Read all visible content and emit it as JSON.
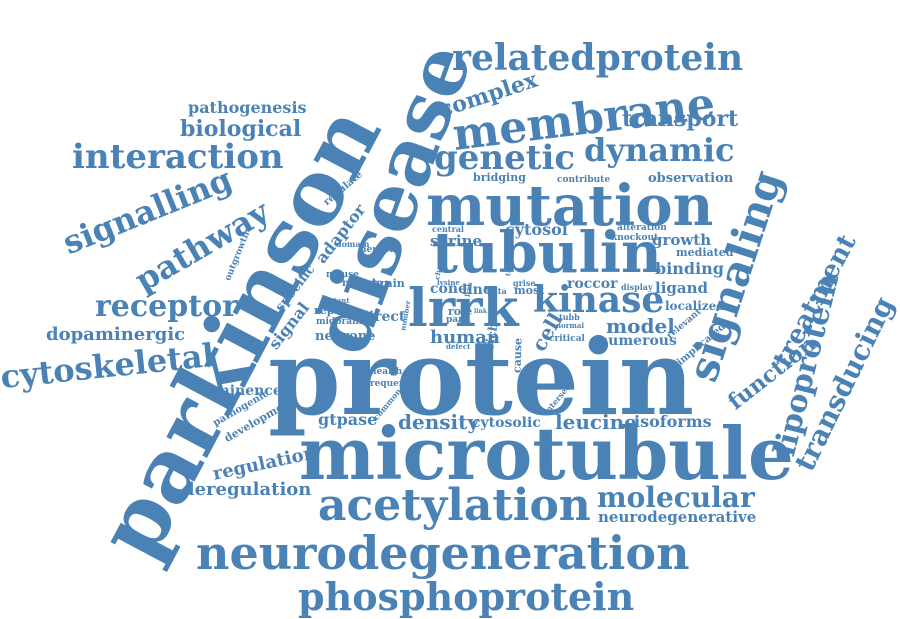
{
  "word_color": "#4a82b6",
  "background_color": "#ffffff",
  "words": [
    {
      "id": "protein",
      "text": "protein"
    },
    {
      "id": "microtubule",
      "text": "microtubule"
    },
    {
      "id": "parkinson",
      "text": "parkinson"
    },
    {
      "id": "disease",
      "text": "disease"
    },
    {
      "id": "mutation",
      "text": "mutation"
    },
    {
      "id": "tubulin",
      "text": "tubulin"
    },
    {
      "id": "lrrk",
      "text": "lrrk"
    },
    {
      "id": "neurodegeneration",
      "text": "neurodegeneration"
    },
    {
      "id": "acetylation",
      "text": "acetylation"
    },
    {
      "id": "membrane",
      "text": "membrane"
    },
    {
      "id": "signaling",
      "text": "signaling"
    },
    {
      "id": "phosphoprotein",
      "text": "phosphoprotein"
    },
    {
      "id": "relatedprotein",
      "text": "relatedprotein"
    },
    {
      "id": "kinase",
      "text": "kinase"
    },
    {
      "id": "genetic",
      "text": "genetic"
    },
    {
      "id": "dynamic",
      "text": "dynamic"
    },
    {
      "id": "interaction",
      "text": "interaction"
    },
    {
      "id": "signalling",
      "text": "signalling"
    },
    {
      "id": "pathway",
      "text": "pathway"
    },
    {
      "id": "receptor",
      "text": "receptor"
    },
    {
      "id": "cytoskeletal",
      "text": "cytoskeletal"
    },
    {
      "id": "molecular",
      "text": "molecular"
    },
    {
      "id": "lipoprotein",
      "text": "lipoprotein"
    },
    {
      "id": "transducing",
      "text": "transducing"
    },
    {
      "id": "treatment",
      "text": "treatment"
    },
    {
      "id": "function",
      "text": "function"
    },
    {
      "id": "complex",
      "text": "complex"
    },
    {
      "id": "transport",
      "text": "transport"
    },
    {
      "id": "biological",
      "text": "biological"
    },
    {
      "id": "pathogenesis",
      "text": "pathogenesis"
    },
    {
      "id": "dopaminergic",
      "text": "dopaminergic"
    },
    {
      "id": "density",
      "text": "density"
    },
    {
      "id": "leucine",
      "text": "leucine"
    },
    {
      "id": "isoforms",
      "text": "isoforms"
    },
    {
      "id": "neurodegenerative",
      "text": "neurodegenerative"
    },
    {
      "id": "deregulation",
      "text": "deregulation"
    },
    {
      "id": "regulation",
      "text": "regulation"
    },
    {
      "id": "gtpase",
      "text": "gtpase"
    },
    {
      "id": "cytosolic",
      "text": "cytosolic"
    },
    {
      "id": "model",
      "text": "model"
    },
    {
      "id": "human",
      "text": "human"
    },
    {
      "id": "numerous",
      "text": "numerous"
    },
    {
      "id": "neurone",
      "text": "neurone"
    },
    {
      "id": "cytosol",
      "text": "cytosol"
    },
    {
      "id": "serine",
      "text": "serine"
    },
    {
      "id": "growth",
      "text": "growth"
    },
    {
      "id": "binding",
      "text": "binding"
    },
    {
      "id": "ligand",
      "text": "ligand"
    },
    {
      "id": "roccor",
      "text": "roccor"
    },
    {
      "id": "localized",
      "text": "localized"
    },
    {
      "id": "observation",
      "text": "observation"
    },
    {
      "id": "mediated",
      "text": "mediated"
    },
    {
      "id": "signal",
      "text": "signal"
    },
    {
      "id": "specific",
      "text": "specific"
    },
    {
      "id": "adaptor",
      "text": "adaptor"
    },
    {
      "id": "eminence",
      "text": "éminence"
    },
    {
      "id": "pathogenic",
      "text": "pathogenic"
    },
    {
      "id": "development",
      "text": "development"
    },
    {
      "id": "outgrowth",
      "text": "outgrowth"
    },
    {
      "id": "regulate",
      "text": "regulate"
    },
    {
      "id": "domain",
      "text": "domain"
    },
    {
      "id": "bridging",
      "text": "bridging"
    },
    {
      "id": "contribute",
      "text": "contribute"
    },
    {
      "id": "most",
      "text": "most"
    },
    {
      "id": "alteration",
      "text": "alteration"
    },
    {
      "id": "knockout",
      "text": "knockout"
    },
    {
      "id": "central",
      "text": "central"
    },
    {
      "id": "cone",
      "text": "cone"
    },
    {
      "id": "line",
      "text": "line"
    },
    {
      "id": "data",
      "text": "data"
    },
    {
      "id": "cell",
      "text": "cell"
    },
    {
      "id": "direct",
      "text": "direct"
    },
    {
      "id": "repeat",
      "text": "repeat"
    },
    {
      "id": "midbrain",
      "text": "midbrain"
    },
    {
      "id": "brain",
      "text": "brain"
    },
    {
      "id": "mature",
      "text": "mature"
    },
    {
      "id": "mouse",
      "text": "mouse"
    },
    {
      "id": "mutant",
      "text": "mutant"
    },
    {
      "id": "neuron",
      "text": "neuron"
    },
    {
      "id": "cause",
      "text": "cause"
    },
    {
      "id": "critical",
      "text": "critical"
    },
    {
      "id": "normal",
      "text": "normal"
    },
    {
      "id": "tubb",
      "text": "tubb"
    },
    {
      "id": "rich",
      "text": "rich"
    },
    {
      "id": "role",
      "text": "role"
    },
    {
      "id": "park",
      "text": "park"
    },
    {
      "id": "health",
      "text": "health"
    },
    {
      "id": "frequent",
      "text": "frequent"
    },
    {
      "id": "common",
      "text": "common"
    },
    {
      "id": "intersect",
      "text": "intersect"
    },
    {
      "id": "relevant",
      "text": "relevant"
    },
    {
      "id": "implicated",
      "text": "implicated"
    },
    {
      "id": "display",
      "text": "display"
    },
    {
      "id": "grise",
      "text": "grise"
    },
    {
      "id": "lysine",
      "text": "lysine"
    },
    {
      "id": "number",
      "text": "number"
    },
    {
      "id": "defect",
      "text": "defect"
    },
    {
      "id": "change",
      "text": "change"
    },
    {
      "id": "tubule",
      "text": "tubule"
    },
    {
      "id": "lrrk2",
      "text": "lrrk"
    },
    {
      "id": "link",
      "text": "link"
    },
    {
      "id": "loss",
      "text": "loss"
    }
  ]
}
